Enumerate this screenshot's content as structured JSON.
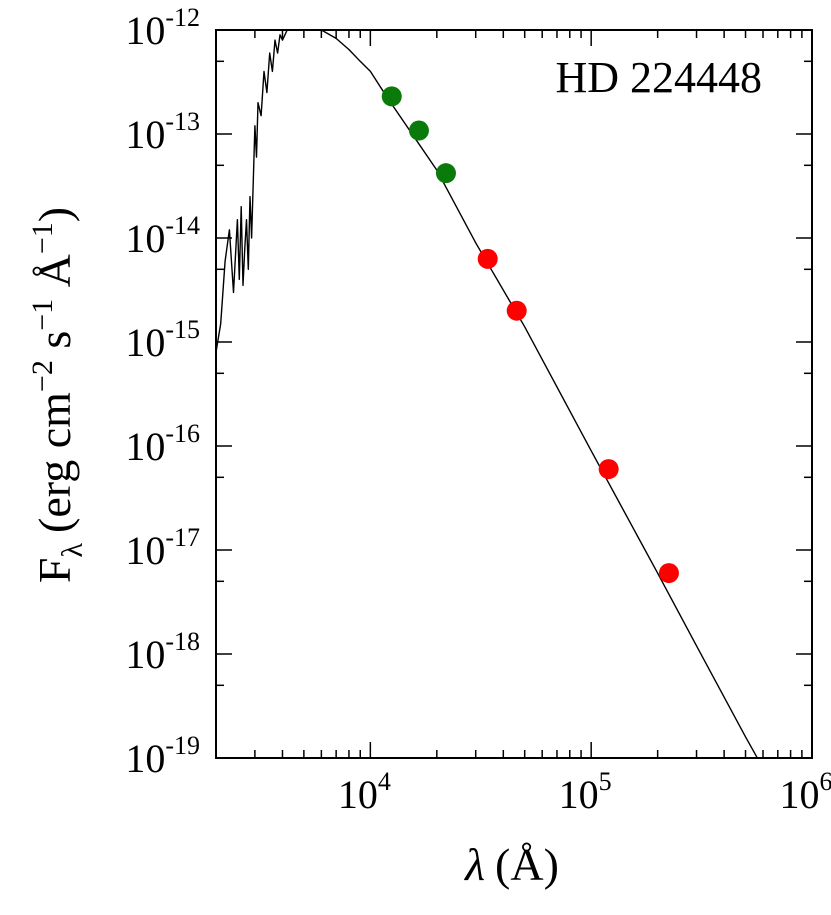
{
  "chart_data": {
    "type": "scatter",
    "title": "HD 224448",
    "xlabel": {
      "symbol": "λ",
      "unit": "(Å)"
    },
    "ylabel": {
      "symbol": "F",
      "subscript": "λ",
      "unit_main": "(erg cm",
      "exp1": "−2",
      "s": " s",
      "exp2": "−1",
      "angstrom": " Å",
      "exp3": "−1",
      "close": ")"
    },
    "x_scale": "log",
    "y_scale": "log",
    "xlim": [
      2000,
      1000000
    ],
    "ylim": [
      1e-19,
      1e-12
    ],
    "x_ticks": [
      {
        "value": 10000,
        "base": "10",
        "exp": "4"
      },
      {
        "value": 100000,
        "base": "10",
        "exp": "5"
      },
      {
        "value": 1000000,
        "base": "10",
        "exp": "6"
      }
    ],
    "y_ticks": [
      {
        "value": 1e-12,
        "base": "10",
        "exp": "-12"
      },
      {
        "value": 1e-13,
        "base": "10",
        "exp": "-13"
      },
      {
        "value": 1e-14,
        "base": "10",
        "exp": "-14"
      },
      {
        "value": 1e-15,
        "base": "10",
        "exp": "-15"
      },
      {
        "value": 1e-16,
        "base": "10",
        "exp": "-16"
      },
      {
        "value": 1e-17,
        "base": "10",
        "exp": "-17"
      },
      {
        "value": 1e-18,
        "base": "10",
        "exp": "-18"
      },
      {
        "value": 1e-19,
        "base": "10",
        "exp": "-19"
      }
    ],
    "grid": false,
    "legend": "none",
    "series": [
      {
        "kind": "line",
        "color": "#000000",
        "x": [
          2000,
          2100,
          2200,
          2300,
          2400,
          2500,
          2550,
          2600,
          2650,
          2700,
          2750,
          2800,
          2850,
          2900,
          3000,
          3050,
          3100,
          3200,
          3300,
          3400,
          3500,
          3600,
          3700,
          3800,
          3900,
          4000,
          4200,
          4500,
          5000,
          5500,
          6000,
          7000,
          8000,
          9000,
          10000,
          12000,
          15000,
          20000,
          30000,
          50000,
          100000,
          200000,
          300000,
          500000,
          600000
        ],
        "y": [
          8e-16,
          1.5e-15,
          6e-15,
          1.2e-14,
          3e-15,
          1.5e-14,
          4e-15,
          2e-14,
          3.5e-15,
          8e-15,
          1.5e-14,
          5e-15,
          2.5e-14,
          1e-14,
          1.2e-13,
          6e-14,
          2e-13,
          1.5e-13,
          4e-13,
          2.5e-13,
          6e-13,
          4e-13,
          8e-13,
          6e-13,
          9e-13,
          8e-13,
          1e-12,
          1.05e-12,
          1.15e-12,
          1.1e-12,
          1e-12,
          8.3e-13,
          6.5e-13,
          5e-13,
          4e-13,
          2.2e-13,
          1.1e-13,
          4.5e-14,
          9e-15,
          1.4e-15,
          9e-17,
          6e-18,
          1.2e-18,
          1.6e-19,
          8e-20
        ]
      },
      {
        "kind": "points",
        "color": "#0a7a0a",
        "x": [
          12500,
          16600,
          22000
        ],
        "y": [
          2.3e-13,
          1.08e-13,
          4.2e-14
        ]
      },
      {
        "kind": "points",
        "color": "#ff0000",
        "x": [
          34000,
          46000,
          120000,
          225000
        ],
        "y": [
          6.3e-15,
          2e-15,
          6e-17,
          6e-18
        ]
      }
    ]
  }
}
